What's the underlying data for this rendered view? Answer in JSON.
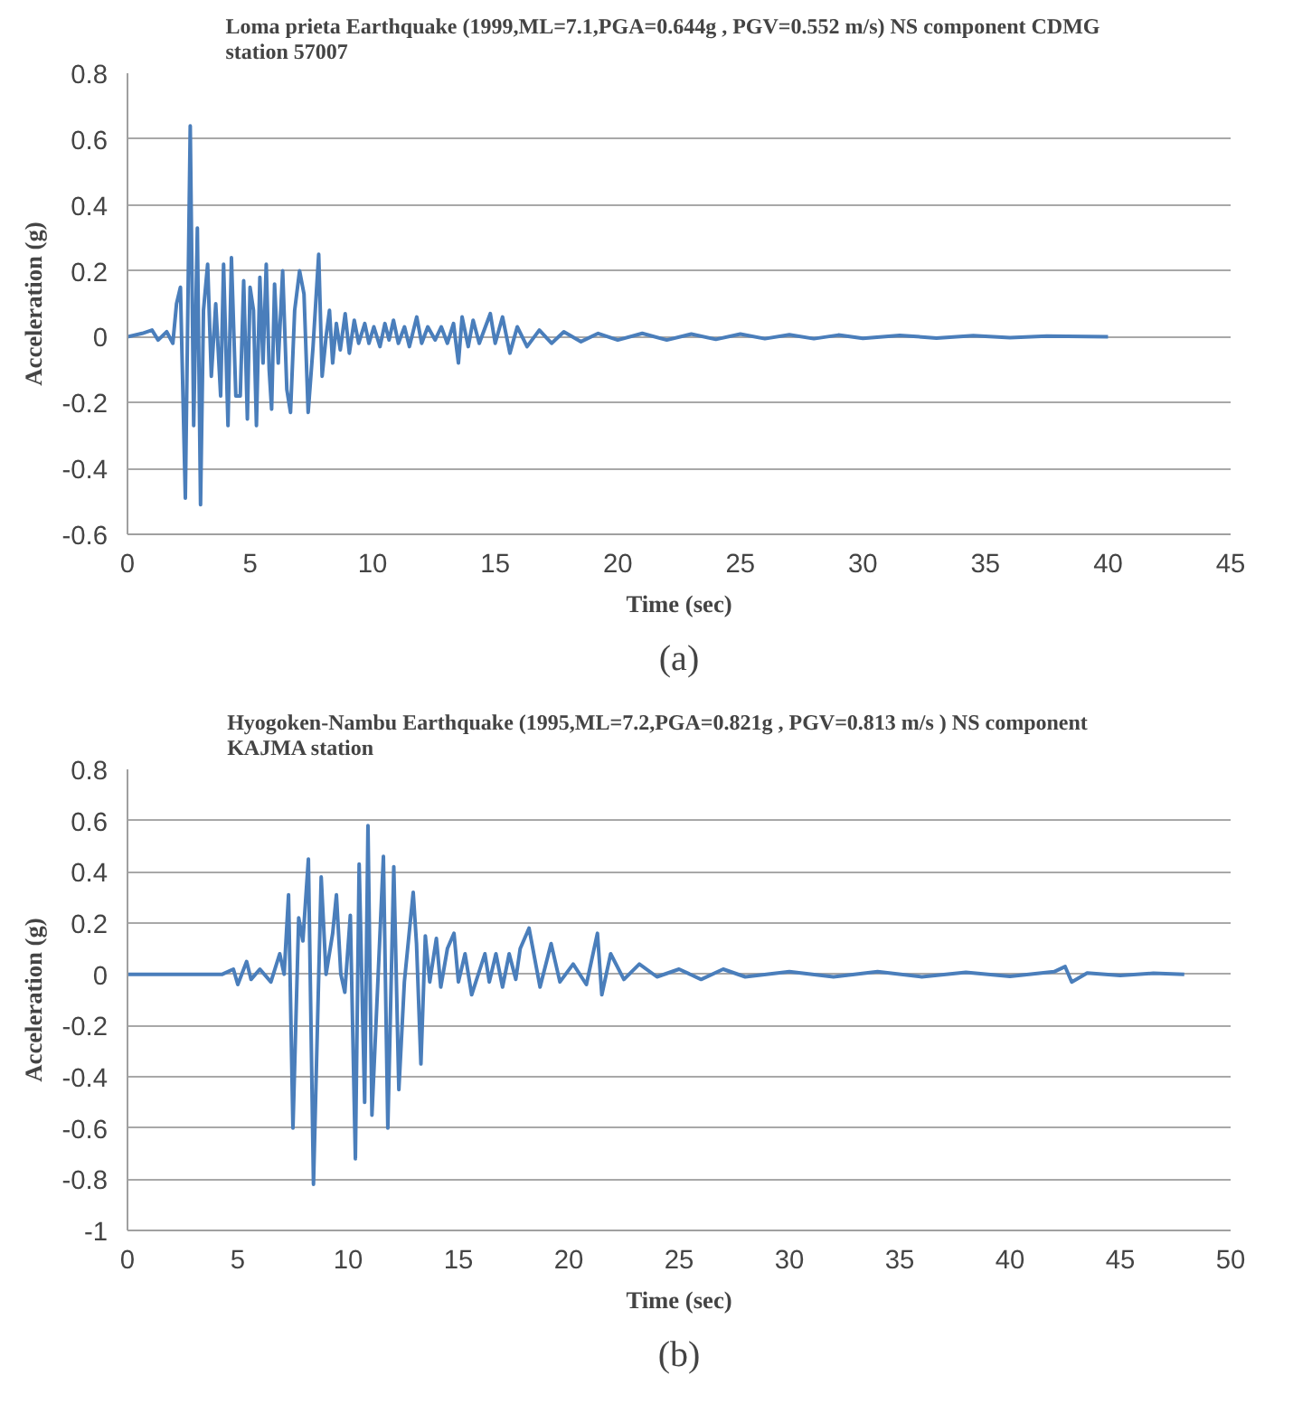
{
  "chart_data": [
    {
      "type": "line",
      "title": "Loma prieta Earthquake (1999,ML=7.1,PGA=0.644g  , PGV=0.552  m/s)     NS component CDMG\nstation 57007",
      "xlabel": "Time (sec)",
      "ylabel": "Acceleration (g)",
      "xlim": [
        0,
        45
      ],
      "xticks": [
        0,
        5,
        10,
        15,
        20,
        25,
        30,
        35,
        40,
        45
      ],
      "ylim": [
        -0.6,
        0.8
      ],
      "yticks": [
        -0.6,
        -0.4,
        -0.2,
        0,
        0.2,
        0.4,
        0.6,
        0.8
      ],
      "grid": "y",
      "line_style": "solid",
      "annotations": [
        "(a)"
      ],
      "series": [
        {
          "color": "#4a7ebb",
          "x": [
            0,
            0.6,
            1.0,
            1.25,
            1.6,
            1.85,
            2.0,
            2.16,
            2.36,
            2.56,
            2.7,
            2.85,
            2.98,
            3.1,
            3.27,
            3.42,
            3.6,
            3.8,
            3.92,
            4.1,
            4.24,
            4.42,
            4.6,
            4.74,
            4.89,
            5.0,
            5.14,
            5.26,
            5.4,
            5.53,
            5.66,
            5.78,
            5.88,
            6.0,
            6.15,
            6.33,
            6.5,
            6.65,
            6.82,
            7.02,
            7.2,
            7.37,
            7.57,
            7.8,
            7.94,
            8.1,
            8.24,
            8.37,
            8.52,
            8.68,
            8.88,
            9.05,
            9.25,
            9.43,
            9.68,
            9.85,
            10.05,
            10.3,
            10.5,
            10.67,
            10.85,
            11.05,
            11.3,
            11.5,
            11.8,
            12.0,
            12.25,
            12.55,
            12.8,
            13.05,
            13.3,
            13.5,
            13.65,
            13.9,
            14.1,
            14.35,
            14.6,
            14.8,
            15.0,
            15.3,
            15.6,
            15.9,
            16.3,
            16.8,
            17.3,
            17.8,
            18.5,
            19.2,
            20,
            21,
            22,
            23,
            24,
            25,
            26,
            27,
            28,
            29,
            30,
            31.5,
            33,
            34.5,
            36,
            37.5,
            40
          ],
          "values": [
            0,
            0.01,
            0.02,
            -0.01,
            0.015,
            -0.02,
            0.1,
            0.15,
            -0.49,
            0.64,
            -0.27,
            0.33,
            -0.51,
            0.08,
            0.22,
            -0.12,
            0.1,
            -0.18,
            0.22,
            -0.27,
            0.24,
            -0.18,
            -0.18,
            0.17,
            -0.25,
            0.15,
            0.08,
            -0.27,
            0.18,
            -0.08,
            0.22,
            -0.1,
            -0.22,
            0.16,
            -0.08,
            0.2,
            -0.16,
            -0.23,
            0.08,
            0.2,
            0.13,
            -0.23,
            -0.03,
            0.25,
            -0.12,
            0,
            0.08,
            -0.08,
            0.04,
            -0.04,
            0.07,
            -0.05,
            0.05,
            -0.02,
            0.04,
            -0.02,
            0.03,
            -0.03,
            0.04,
            -0.01,
            0.05,
            -0.02,
            0.03,
            -0.03,
            0.06,
            -0.02,
            0.03,
            -0.01,
            0.03,
            -0.02,
            0.04,
            -0.08,
            0.06,
            -0.03,
            0.05,
            -0.02,
            0.03,
            0.07,
            -0.02,
            0.06,
            -0.05,
            0.03,
            -0.03,
            0.02,
            -0.02,
            0.015,
            -0.015,
            0.01,
            -0.01,
            0.01,
            -0.01,
            0.008,
            -0.008,
            0.008,
            -0.006,
            0.006,
            -0.006,
            0.005,
            -0.005,
            0.004,
            -0.004,
            0.003,
            -0.003,
            0.002,
            0
          ]
        }
      ]
    },
    {
      "type": "line",
      "title": "Hyogoken-Nambu Earthquake (1995,ML=7.2,PGA=0.821g  , PGV=0.813  m/s )       NS component\nKAJMA  station",
      "xlabel": "Time (sec)",
      "ylabel": "Acceleration (g)",
      "xlim": [
        0,
        50
      ],
      "xticks": [
        0,
        5,
        10,
        15,
        20,
        25,
        30,
        35,
        40,
        45,
        50
      ],
      "ylim": [
        -1,
        0.8
      ],
      "yticks": [
        -1,
        -0.8,
        -0.6,
        -0.4,
        -0.2,
        0,
        0.2,
        0.4,
        0.6,
        0.8
      ],
      "grid": "y",
      "line_style": "solid",
      "annotations": [
        "(b)"
      ],
      "series": [
        {
          "color": "#4a7ebb",
          "x": [
            0,
            4.3,
            4.8,
            5.0,
            5.4,
            5.6,
            6.0,
            6.5,
            6.9,
            7.1,
            7.3,
            7.5,
            7.76,
            7.95,
            8.2,
            8.43,
            8.78,
            9.0,
            9.3,
            9.47,
            9.67,
            9.85,
            10.1,
            10.33,
            10.5,
            10.75,
            10.9,
            11.08,
            11.6,
            11.8,
            12.07,
            12.3,
            12.55,
            12.95,
            13.1,
            13.3,
            13.5,
            13.7,
            14.0,
            14.2,
            14.5,
            14.8,
            15.0,
            15.3,
            15.6,
            16.2,
            16.4,
            16.7,
            17.0,
            17.3,
            17.6,
            17.8,
            18.2,
            18.7,
            19.2,
            19.6,
            20.2,
            20.8,
            21.3,
            21.5,
            21.9,
            22.5,
            23.2,
            24.0,
            25.0,
            26.0,
            27.0,
            28.0,
            30.0,
            32.0,
            34.0,
            36.0,
            38.0,
            40.0,
            42.0,
            42.5,
            42.8,
            43.5,
            45.0,
            46.5,
            47.9
          ],
          "values": [
            0,
            0,
            0.02,
            -0.04,
            0.05,
            -0.02,
            0.02,
            -0.03,
            0.08,
            0,
            0.31,
            -0.6,
            0.22,
            0.13,
            0.45,
            -0.82,
            0.38,
            0,
            0.16,
            0.31,
            0,
            -0.07,
            0.23,
            -0.72,
            0.43,
            -0.5,
            0.58,
            -0.55,
            0.46,
            -0.6,
            0.42,
            -0.45,
            -0.03,
            0.32,
            0.12,
            -0.35,
            0.15,
            -0.03,
            0.14,
            -0.05,
            0.1,
            0.16,
            -0.03,
            0.08,
            -0.08,
            0.08,
            -0.03,
            0.08,
            -0.05,
            0.08,
            -0.02,
            0.1,
            0.18,
            -0.05,
            0.12,
            -0.03,
            0.04,
            -0.04,
            0.16,
            -0.08,
            0.08,
            -0.02,
            0.04,
            -0.01,
            0.02,
            -0.02,
            0.02,
            -0.01,
            0.01,
            -0.01,
            0.01,
            -0.01,
            0.008,
            -0.008,
            0.01,
            0.03,
            -0.03,
            0.005,
            -0.005,
            0.004,
            0
          ]
        }
      ]
    }
  ]
}
